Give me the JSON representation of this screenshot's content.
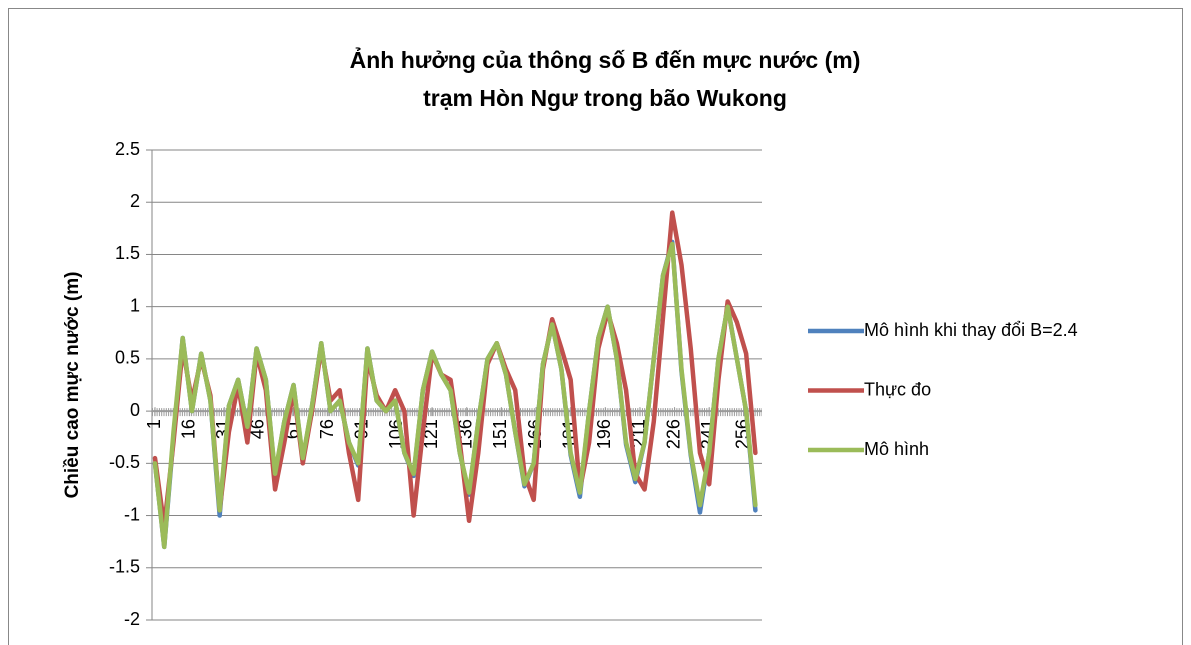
{
  "chart_data": {
    "type": "line",
    "title": [
      "Ảnh hưởng của thông số B đến mực nước (m)",
      "trạm Hòn Ngư trong bão Wukong"
    ],
    "y_label": "Chiều cao mực nước (m)",
    "xlim": [
      1,
      263
    ],
    "xticks": [
      1,
      16,
      31,
      46,
      61,
      76,
      91,
      106,
      121,
      136,
      151,
      166,
      181,
      196,
      211,
      226,
      241,
      256
    ],
    "ylim": [
      -2,
      2.5
    ],
    "yticks": [
      2.5,
      2,
      1.5,
      1,
      0.5,
      0,
      -0.5,
      -1,
      -1.5,
      -2
    ],
    "grid": true,
    "legend": "right",
    "x": [
      1,
      5,
      9,
      13,
      17,
      21,
      25,
      29,
      33,
      37,
      41,
      45,
      49,
      53,
      57,
      61,
      65,
      69,
      73,
      77,
      81,
      85,
      89,
      93,
      97,
      101,
      105,
      109,
      113,
      117,
      121,
      125,
      129,
      133,
      137,
      141,
      145,
      149,
      153,
      157,
      161,
      165,
      169,
      173,
      177,
      181,
      185,
      189,
      193,
      197,
      201,
      205,
      209,
      213,
      217,
      221,
      225,
      229,
      233,
      237,
      241,
      245,
      249,
      253,
      257,
      261
    ],
    "series": [
      {
        "name": "Mô hình khi thay đổi B=2.4",
        "color": "#4f81bd",
        "values": [
          -0.5,
          -1.3,
          -0.25,
          0.7,
          0.0,
          0.55,
          0.1,
          -1.0,
          0.05,
          0.3,
          -0.15,
          0.6,
          0.3,
          -0.62,
          -0.1,
          0.25,
          -0.47,
          0.05,
          0.65,
          0.0,
          0.1,
          -0.3,
          -0.52,
          0.6,
          0.1,
          0.0,
          0.1,
          -0.4,
          -0.62,
          0.2,
          0.57,
          0.35,
          0.2,
          -0.4,
          -0.8,
          -0.1,
          0.5,
          0.65,
          0.35,
          -0.2,
          -0.72,
          -0.5,
          0.45,
          0.83,
          0.4,
          -0.42,
          -0.82,
          0.0,
          0.7,
          1.0,
          0.5,
          -0.32,
          -0.68,
          -0.3,
          0.5,
          1.3,
          1.62,
          0.38,
          -0.42,
          -0.97,
          -0.4,
          0.5,
          1.0,
          0.5,
          0.0,
          -0.95
        ]
      },
      {
        "name": "Thực đo",
        "color": "#c0504d",
        "values": [
          -0.45,
          -1.1,
          -0.3,
          0.6,
          0.1,
          0.5,
          0.15,
          -0.95,
          -0.2,
          0.25,
          -0.3,
          0.55,
          0.2,
          -0.75,
          -0.3,
          0.2,
          -0.5,
          0.0,
          0.6,
          0.1,
          0.2,
          -0.4,
          -0.85,
          0.5,
          0.15,
          0.0,
          0.2,
          0.0,
          -1.0,
          -0.2,
          0.55,
          0.35,
          0.3,
          -0.3,
          -1.05,
          -0.4,
          0.45,
          0.65,
          0.4,
          0.2,
          -0.6,
          -0.85,
          0.4,
          0.88,
          0.6,
          0.3,
          -0.75,
          -0.3,
          0.6,
          0.95,
          0.65,
          0.2,
          -0.6,
          -0.75,
          -0.1,
          0.9,
          1.9,
          1.4,
          0.6,
          -0.4,
          -0.7,
          0.3,
          1.05,
          0.85,
          0.55,
          -0.4
        ]
      },
      {
        "name": "Mô hình",
        "color": "#9bbb59",
        "values": [
          -0.5,
          -1.3,
          -0.2,
          0.7,
          0.0,
          0.55,
          0.1,
          -0.95,
          0.05,
          0.3,
          -0.15,
          0.6,
          0.3,
          -0.6,
          -0.1,
          0.25,
          -0.45,
          0.05,
          0.65,
          0.0,
          0.1,
          -0.3,
          -0.5,
          0.6,
          0.1,
          0.0,
          0.1,
          -0.4,
          -0.6,
          0.2,
          0.57,
          0.35,
          0.2,
          -0.4,
          -0.78,
          -0.1,
          0.5,
          0.65,
          0.35,
          -0.2,
          -0.7,
          -0.5,
          0.45,
          0.83,
          0.4,
          -0.4,
          -0.78,
          0.0,
          0.7,
          1.0,
          0.5,
          -0.3,
          -0.65,
          -0.3,
          0.5,
          1.3,
          1.6,
          0.4,
          -0.4,
          -0.9,
          -0.4,
          0.5,
          1.0,
          0.5,
          0.0,
          -0.9
        ]
      }
    ]
  }
}
